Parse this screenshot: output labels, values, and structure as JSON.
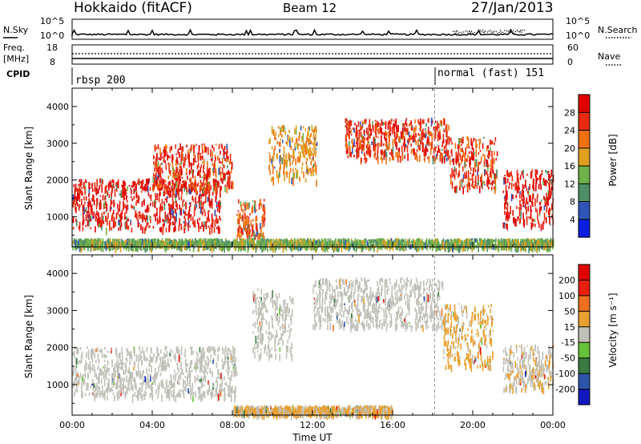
{
  "header": {
    "station": "Hokkaido (fitACF)",
    "beam": "Beam 12",
    "date": "27/Jan/2013"
  },
  "top_panels": {
    "nsky_label": "N.Sky",
    "nsearch_label": "N.Search",
    "nsky_ticks": [
      "10^5",
      "10^0"
    ],
    "nsearch_ticks": [
      "10^5",
      "10^0"
    ],
    "freq_label_1": "Freq.",
    "freq_label_2": "[MHz]",
    "freq_ticks": [
      "18",
      "8"
    ],
    "nave_label": "Nave",
    "nave_ticks": [
      "60",
      "0"
    ],
    "cpid_label": "CPID",
    "cpid_segments": [
      {
        "label": "rbsp 200",
        "start_hour": 0
      },
      {
        "label": "normal (fast) 151",
        "start_hour": 18.1
      }
    ]
  },
  "chart_data": [
    {
      "type": "heatmap",
      "title": "",
      "ylabel": "Slant Range [km]",
      "xlabel": "",
      "x_range_hours": [
        0,
        24
      ],
      "ylim": [
        180,
        4500
      ],
      "y_ticks": [
        1000,
        2000,
        3000,
        4000
      ],
      "colorbar": {
        "label": "Power [dB]",
        "range": [
          0,
          32
        ],
        "ticks": [
          "4",
          "8",
          "12",
          "16",
          "20",
          "24",
          "28"
        ],
        "colors": [
          "#0a1fe0",
          "#2f55b8",
          "#4e8f66",
          "#6fb14a",
          "#e0a020",
          "#f07010",
          "#e82a10",
          "#e00000"
        ]
      },
      "features": [
        {
          "name": "band",
          "t0": 0.0,
          "t1": 7.4,
          "r0": 700,
          "r1": 2050,
          "level": 28
        },
        {
          "name": "rising arc",
          "t0": 4.0,
          "t1": 8.0,
          "r0": 1800,
          "r1": 3000,
          "level": 26
        },
        {
          "name": "fall",
          "t0": 8.2,
          "t1": 9.6,
          "r0": 450,
          "r1": 1500,
          "level": 24
        },
        {
          "name": "arc",
          "t0": 9.8,
          "t1": 12.2,
          "r0": 2000,
          "r1": 3500,
          "level": 20
        },
        {
          "name": "arc",
          "t0": 13.6,
          "t1": 18.8,
          "r0": 2600,
          "r1": 3700,
          "level": 26
        },
        {
          "name": "V",
          "t0": 18.8,
          "t1": 21.2,
          "r0": 1800,
          "r1": 3200,
          "level": 26
        },
        {
          "name": "late",
          "t0": 21.5,
          "t1": 24.0,
          "r0": 800,
          "r1": 2300,
          "level": 28
        },
        {
          "name": "ground scatter",
          "t0": 0.0,
          "t1": 24.0,
          "r0": 220,
          "r1": 420,
          "level": 14
        }
      ]
    },
    {
      "type": "heatmap",
      "title": "",
      "ylabel": "Slant Range [km]",
      "xlabel": "Time UT",
      "x_range_hours": [
        0,
        24
      ],
      "x_ticks": [
        "00:00",
        "04:00",
        "08:00",
        "12:00",
        "16:00",
        "20:00",
        "00:00"
      ],
      "ylim": [
        180,
        4500
      ],
      "y_ticks": [
        1000,
        2000,
        3000,
        4000
      ],
      "colorbar": {
        "label": "Velocity [m s⁻¹]",
        "range": [
          -250,
          250
        ],
        "ticks": [
          "200",
          "100",
          "50",
          "15",
          "-15",
          "-50",
          "-100",
          "-200"
        ],
        "colors": [
          "#1018c0",
          "#2c54a8",
          "#3a7a40",
          "#66c23a",
          "#c0c0b8",
          "#e8a030",
          "#f07020",
          "#e82010",
          "#e00000"
        ]
      },
      "features": [
        {
          "name": "band",
          "t0": 0.0,
          "t1": 8.2,
          "r0": 700,
          "r1": 2050,
          "level": 0
        },
        {
          "name": "arc",
          "t0": 9.0,
          "t1": 11.0,
          "r0": 1800,
          "r1": 3600,
          "level": 0
        },
        {
          "name": "arc",
          "t0": 12.0,
          "t1": 18.5,
          "r0": 2600,
          "r1": 3900,
          "level": 0
        },
        {
          "name": "V",
          "t0": 18.5,
          "t1": 21.0,
          "r0": 1500,
          "r1": 3200,
          "level": 40
        },
        {
          "name": "late",
          "t0": 21.5,
          "t1": 24.0,
          "r0": 900,
          "r1": 2100,
          "level": 20
        },
        {
          "name": "near",
          "t0": 8.0,
          "t1": 16.0,
          "r0": 250,
          "r1": 450,
          "level": 35
        }
      ]
    }
  ]
}
